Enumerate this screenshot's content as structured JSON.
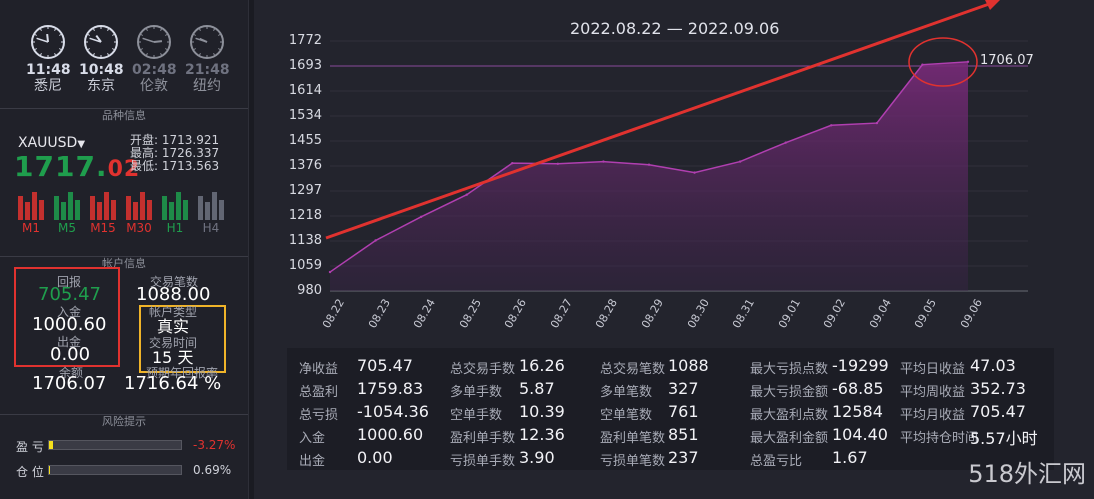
{
  "clocks": [
    {
      "time": "11:48",
      "city": "悉尼",
      "dim": false,
      "h": 11.8,
      "m": 48
    },
    {
      "time": "10:48",
      "city": "东京",
      "dim": false,
      "h": 10.8,
      "m": 48
    },
    {
      "time": "02:48",
      "city": "伦敦",
      "dim": true,
      "h": 2.8,
      "m": 48
    },
    {
      "time": "21:48",
      "city": "纽约",
      "dim": true,
      "h": 21.8,
      "m": 48
    }
  ],
  "sections": {
    "product": "品种信息",
    "account": "帐户信息",
    "risk": "风险提示"
  },
  "symbol": {
    "name": "XAUUSD",
    "price_main": "1717.",
    "price_tail": "02",
    "open_label": "开盘:",
    "open": "1713.921",
    "high_label": "最高:",
    "high": "1726.337",
    "low_label": "最低:",
    "low": "1713.563"
  },
  "timeframes": [
    {
      "label": "M1",
      "color": "#e0322f"
    },
    {
      "label": "M5",
      "color": "#1f9e4d"
    },
    {
      "label": "M15",
      "color": "#e0322f"
    },
    {
      "label": "M30",
      "color": "#e0322f"
    },
    {
      "label": "H1",
      "color": "#1f9e4d"
    },
    {
      "label": "H4",
      "color": "#6f7280"
    }
  ],
  "account": {
    "return_label": "回报",
    "return_value": "705.47",
    "trades_label": "交易笔数",
    "trades_value": "1088.00",
    "deposit_label": "入金",
    "deposit_value": "1000.60",
    "type_label": "帐户类型",
    "type_value": "真实",
    "withdraw_label": "出金",
    "withdraw_value": "0.00",
    "time_label": "交易时间",
    "time_value": "15 天",
    "balance_label": "余额",
    "balance_value": "1706.07",
    "annual_label": "预期年回报率",
    "annual_value": "1716.64 %"
  },
  "risk": {
    "profit_label": "盈  亏",
    "profit_value": "-3.27%",
    "profit_fill": 0.03,
    "position_label": "仓  位",
    "position_value": "0.69%",
    "position_fill": 0.007
  },
  "chart_data": {
    "type": "area",
    "title": "2022.08.22 — 2022.09.06",
    "x": [
      "08.22",
      "08.23",
      "08.24",
      "08.25",
      "08.26",
      "08.27",
      "08.28",
      "08.29",
      "08.30",
      "08.31",
      "09.01",
      "09.02",
      "09.04",
      "09.05",
      "09.06"
    ],
    "values": [
      1040,
      1140,
      1215,
      1285,
      1385,
      1383,
      1390,
      1380,
      1355,
      1390,
      1450,
      1505,
      1512,
      1697,
      1706.07
    ],
    "y_ticks": [
      "1772",
      "1693",
      "1614",
      "1534",
      "1455",
      "1376",
      "1297",
      "1218",
      "1138",
      "1059",
      "980"
    ],
    "ylim": [
      980,
      1772
    ],
    "last_label": "1706.07",
    "line_color": "#b03fb0",
    "annotation_arrow_color": "#e0322f"
  },
  "stats": {
    "col1": [
      [
        "净收益",
        "705.47"
      ],
      [
        "总盈利",
        "1759.83"
      ],
      [
        "总亏损",
        "-1054.36"
      ],
      [
        "入金",
        "1000.60"
      ],
      [
        "出金",
        "0.00"
      ]
    ],
    "col2": [
      [
        "总交易手数",
        "16.26"
      ],
      [
        "多单手数",
        "5.87"
      ],
      [
        "空单手数",
        "10.39"
      ],
      [
        "盈利单手数",
        "12.36"
      ],
      [
        "亏损单手数",
        "3.90"
      ]
    ],
    "col3": [
      [
        "总交易笔数",
        "1088"
      ],
      [
        "多单笔数",
        "327"
      ],
      [
        "空单笔数",
        "761"
      ],
      [
        "盈利单笔数",
        "851"
      ],
      [
        "亏损单笔数",
        "237"
      ]
    ],
    "col4": [
      [
        "最大亏损点数",
        "-19299"
      ],
      [
        "最大亏损金额",
        "-68.85"
      ],
      [
        "最大盈利点数",
        "12584"
      ],
      [
        "最大盈利金额",
        "104.40"
      ],
      [
        "总盈亏比",
        "1.67"
      ]
    ],
    "col5": [
      [
        "平均日收益",
        "47.03"
      ],
      [
        "平均周收益",
        "352.73"
      ],
      [
        "平均月收益",
        "705.47"
      ],
      [
        "平均持仓时间",
        "5.57小时"
      ]
    ]
  },
  "watermark": "518外汇网"
}
